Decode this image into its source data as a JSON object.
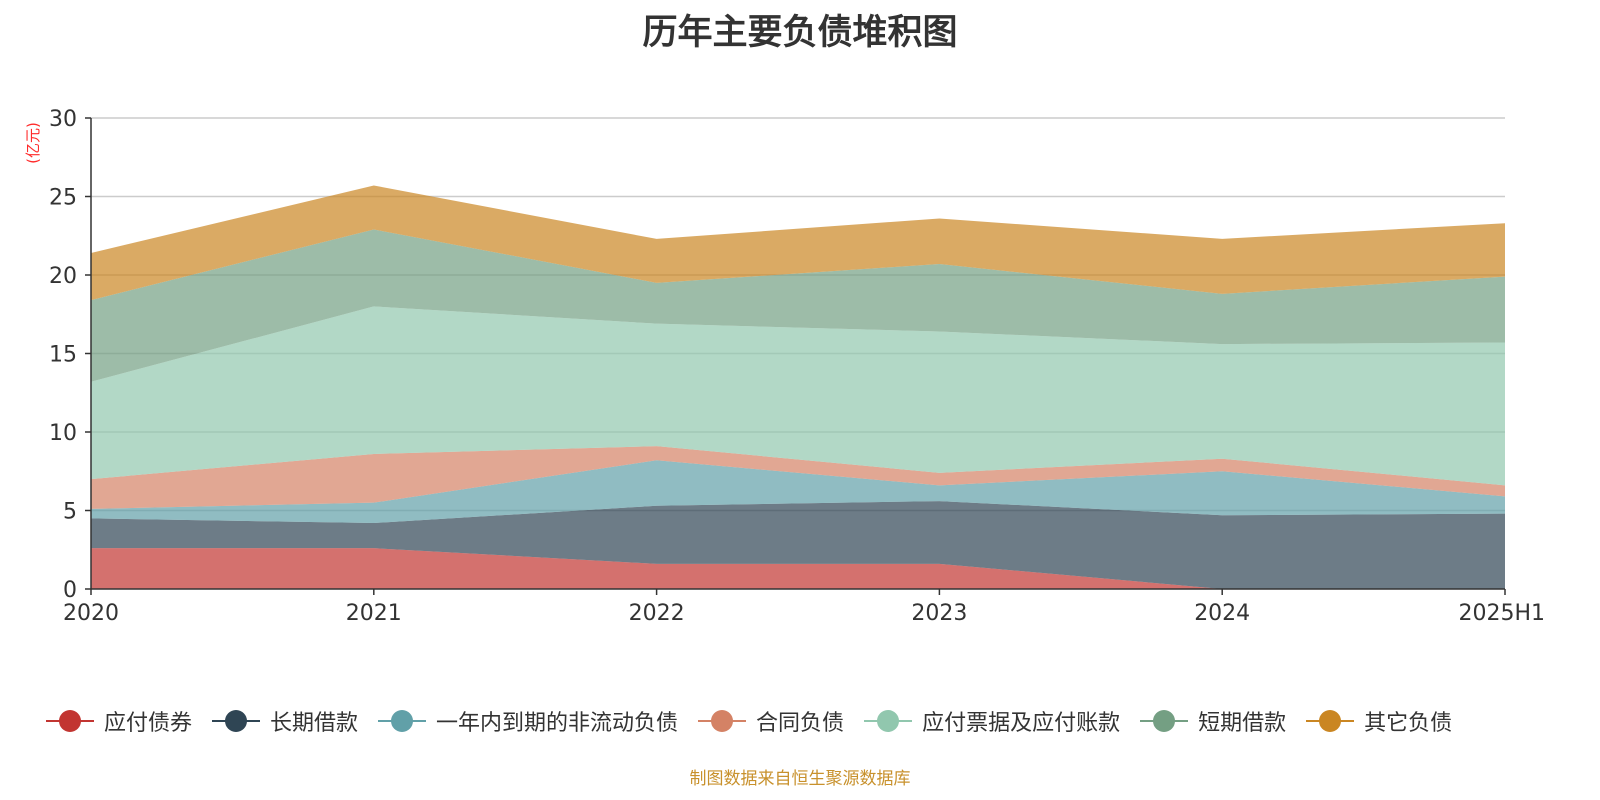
{
  "title": "历年主要负债堆积图",
  "source_note": "制图数据来自恒生聚源数据库",
  "chart_data": {
    "type": "area",
    "stacked": true,
    "title": "历年主要负债堆积图",
    "unit_label": "(亿元)",
    "x": [
      "2020",
      "2021",
      "2022",
      "2023",
      "2024",
      "2025H1"
    ],
    "ylim": [
      0,
      30
    ],
    "yticks": [
      0,
      5,
      10,
      15,
      20,
      25,
      30
    ],
    "grid": true,
    "legend_position": "bottom",
    "series": [
      {
        "name": "应付债券",
        "color": "#c23531",
        "values": [
          2.6,
          2.6,
          1.6,
          1.6,
          0.0,
          0.0
        ]
      },
      {
        "name": "长期借款",
        "color": "#2f4554",
        "values": [
          1.9,
          1.6,
          3.7,
          4.0,
          4.7,
          4.8
        ]
      },
      {
        "name": "一年内到期的非流动负债",
        "color": "#61a0a8",
        "values": [
          0.6,
          1.3,
          2.9,
          1.0,
          2.8,
          1.1
        ]
      },
      {
        "name": "合同负债",
        "color": "#d48265",
        "values": [
          1.9,
          3.1,
          0.9,
          0.8,
          0.8,
          0.7
        ]
      },
      {
        "name": "应付票据及应付账款",
        "color": "#91c7ae",
        "values": [
          6.2,
          9.4,
          7.8,
          9.0,
          7.3,
          9.1
        ]
      },
      {
        "name": "短期借款",
        "color": "#749f83",
        "values": [
          5.2,
          4.9,
          2.6,
          4.3,
          3.2,
          4.2
        ]
      },
      {
        "name": "其它负债",
        "color": "#ca8622",
        "values": [
          3.0,
          2.8,
          2.8,
          2.9,
          3.5,
          3.4
        ]
      }
    ]
  }
}
